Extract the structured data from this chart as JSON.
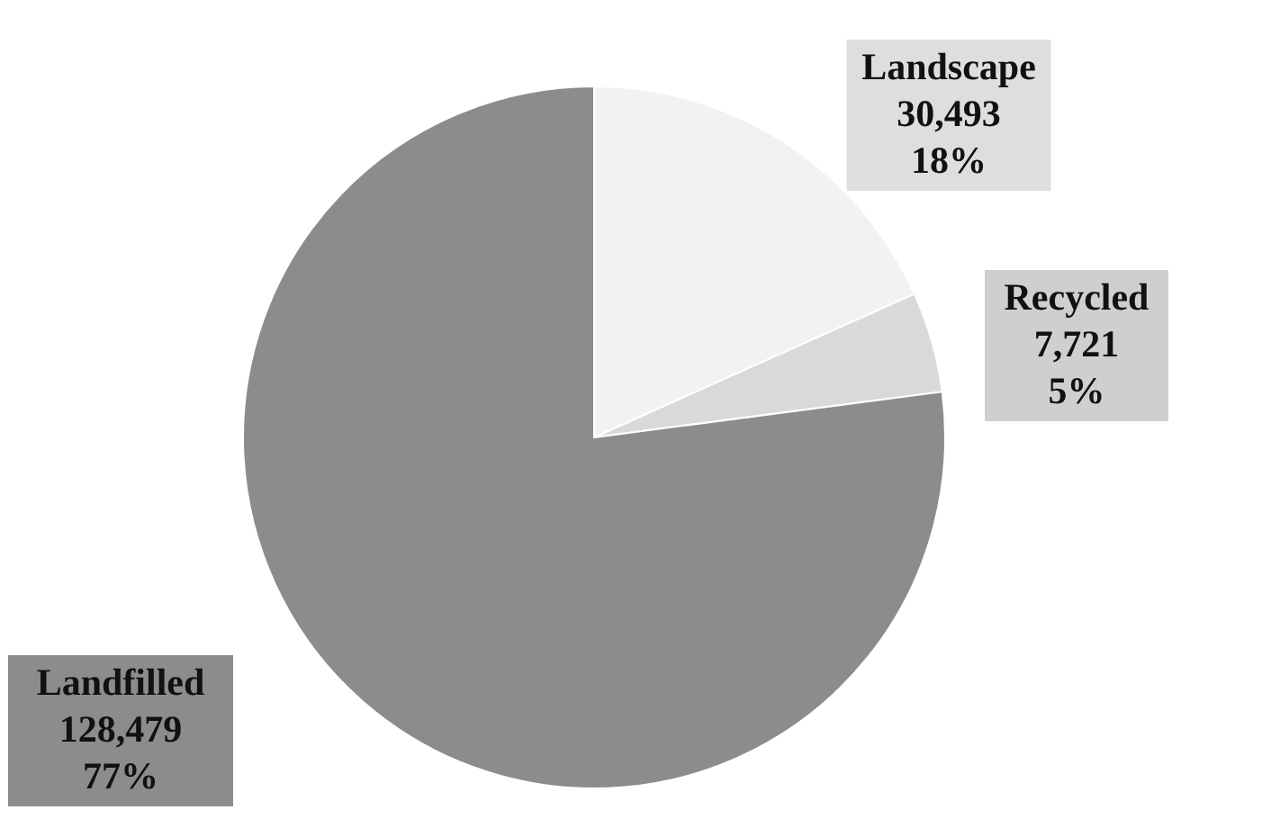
{
  "chart_data": {
    "type": "pie",
    "categories": [
      "Landscape",
      "Recycled",
      "Landfilled"
    ],
    "values": [
      30493,
      7721,
      128479
    ],
    "colors": [
      "#f2f2f2",
      "#d9d9d9",
      "#8c8c8c"
    ],
    "value_labels": [
      "30,493\n18%",
      "7,721\n5%",
      "128,479\n77%"
    ],
    "legend": false
  }
}
